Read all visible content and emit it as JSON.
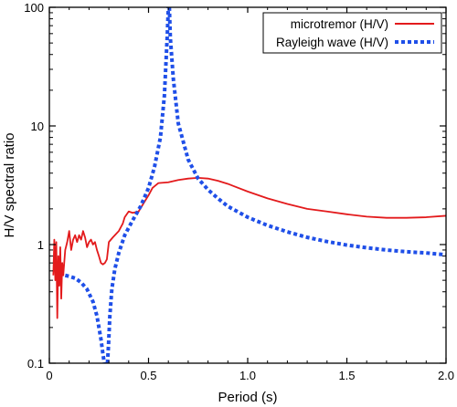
{
  "chart_data": {
    "type": "line",
    "title": "",
    "xlabel": "Period (s)",
    "ylabel": "H/V spectral ratio",
    "xlim": [
      0,
      2.0
    ],
    "ylim": [
      0.1,
      100
    ],
    "yscale": "log",
    "x_ticks": [
      0,
      0.5,
      1.0,
      1.5,
      2.0
    ],
    "x_tick_labels": [
      "0",
      "0.5",
      "1.0",
      "1.5",
      "2.0"
    ],
    "y_ticks": [
      0.1,
      1,
      10,
      100
    ],
    "y_tick_labels": [
      "0.1",
      "1",
      "10",
      "100"
    ],
    "grid": false,
    "legend_position": "top-right",
    "series": [
      {
        "name": "microtremor (H/V)",
        "color": "#e31a1c",
        "style": "solid",
        "points": [
          [
            0.02,
            0.55
          ],
          [
            0.025,
            1.1
          ],
          [
            0.03,
            0.5
          ],
          [
            0.035,
            1.05
          ],
          [
            0.04,
            0.24
          ],
          [
            0.045,
            0.8
          ],
          [
            0.05,
            0.45
          ],
          [
            0.055,
            0.95
          ],
          [
            0.06,
            0.35
          ],
          [
            0.065,
            0.7
          ],
          [
            0.07,
            0.55
          ],
          [
            0.08,
            0.9
          ],
          [
            0.09,
            1.05
          ],
          [
            0.1,
            1.3
          ],
          [
            0.11,
            0.9
          ],
          [
            0.12,
            1.1
          ],
          [
            0.13,
            1.2
          ],
          [
            0.14,
            1.05
          ],
          [
            0.15,
            1.2
          ],
          [
            0.16,
            1.1
          ],
          [
            0.17,
            1.3
          ],
          [
            0.18,
            1.15
          ],
          [
            0.19,
            0.95
          ],
          [
            0.2,
            1.05
          ],
          [
            0.21,
            1.1
          ],
          [
            0.22,
            1.0
          ],
          [
            0.23,
            1.05
          ],
          [
            0.24,
            0.9
          ],
          [
            0.25,
            0.8
          ],
          [
            0.26,
            0.7
          ],
          [
            0.27,
            0.68
          ],
          [
            0.28,
            0.7
          ],
          [
            0.29,
            0.75
          ],
          [
            0.3,
            1.05
          ],
          [
            0.32,
            1.15
          ],
          [
            0.35,
            1.3
          ],
          [
            0.37,
            1.5
          ],
          [
            0.38,
            1.7
          ],
          [
            0.4,
            1.9
          ],
          [
            0.42,
            1.85
          ],
          [
            0.45,
            1.9
          ],
          [
            0.48,
            2.3
          ],
          [
            0.5,
            2.6
          ],
          [
            0.52,
            3.0
          ],
          [
            0.55,
            3.3
          ],
          [
            0.6,
            3.35
          ],
          [
            0.65,
            3.5
          ],
          [
            0.7,
            3.6
          ],
          [
            0.75,
            3.65
          ],
          [
            0.8,
            3.6
          ],
          [
            0.85,
            3.45
          ],
          [
            0.9,
            3.25
          ],
          [
            1.0,
            2.8
          ],
          [
            1.1,
            2.45
          ],
          [
            1.2,
            2.2
          ],
          [
            1.3,
            2.0
          ],
          [
            1.4,
            1.9
          ],
          [
            1.5,
            1.8
          ],
          [
            1.6,
            1.72
          ],
          [
            1.7,
            1.68
          ],
          [
            1.8,
            1.68
          ],
          [
            1.9,
            1.7
          ],
          [
            2.0,
            1.75
          ]
        ]
      },
      {
        "name": "Rayleigh wave (H/V)",
        "color": "#1f4fe8",
        "style": "dotted",
        "points": [
          [
            0.08,
            0.55
          ],
          [
            0.1,
            0.54
          ],
          [
            0.13,
            0.52
          ],
          [
            0.16,
            0.48
          ],
          [
            0.19,
            0.42
          ],
          [
            0.22,
            0.33
          ],
          [
            0.24,
            0.25
          ],
          [
            0.26,
            0.16
          ],
          [
            0.27,
            0.12
          ],
          [
            0.277,
            0.1
          ],
          [
            null,
            null
          ],
          [
            0.293,
            0.1
          ],
          [
            0.298,
            0.14
          ],
          [
            0.305,
            0.25
          ],
          [
            0.315,
            0.42
          ],
          [
            0.33,
            0.62
          ],
          [
            0.35,
            0.85
          ],
          [
            0.38,
            1.2
          ],
          [
            0.42,
            1.6
          ],
          [
            0.46,
            2.1
          ],
          [
            0.5,
            3.0
          ],
          [
            0.53,
            4.5
          ],
          [
            0.56,
            8.0
          ],
          [
            0.58,
            18.0
          ],
          [
            0.595,
            60.0
          ],
          [
            0.6,
            100.0
          ],
          [
            null,
            null
          ],
          [
            0.605,
            100.0
          ],
          [
            0.61,
            55.0
          ],
          [
            0.625,
            25.0
          ],
          [
            0.65,
            10.5
          ],
          [
            0.7,
            5.2
          ],
          [
            0.75,
            3.6
          ],
          [
            0.8,
            2.9
          ],
          [
            0.85,
            2.45
          ],
          [
            0.9,
            2.1
          ],
          [
            1.0,
            1.7
          ],
          [
            1.1,
            1.45
          ],
          [
            1.2,
            1.28
          ],
          [
            1.3,
            1.15
          ],
          [
            1.4,
            1.06
          ],
          [
            1.5,
            0.99
          ],
          [
            1.6,
            0.94
          ],
          [
            1.7,
            0.9
          ],
          [
            1.8,
            0.87
          ],
          [
            1.9,
            0.85
          ],
          [
            2.0,
            0.82
          ]
        ]
      }
    ]
  }
}
